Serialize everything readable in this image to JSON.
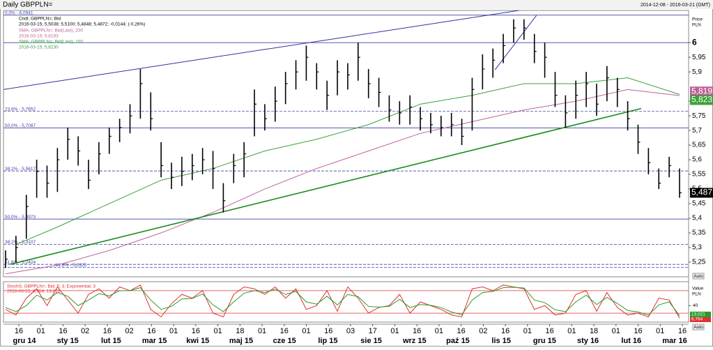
{
  "chart_data": [
    {
      "type": "ohlc",
      "title": "Daily GBPPLN=",
      "subtitle": "2014-12-08 - 2016-03-21 (GMT)",
      "y_label": "Price",
      "y_unit": "PLN",
      "info": [
        "Cndl; GBPPLN=; Bid",
        "2016-03-15; 5,5038; 5,5100; 5,4848; 5,4872; -0,0144; (-0,26%)"
      ],
      "color": "#000000",
      "last_label": "5,487",
      "high": [
        5.29,
        5.34,
        5.48,
        5.6,
        5.58,
        5.64,
        5.71,
        5.68,
        5.6,
        5.66,
        5.71,
        5.74,
        5.79,
        5.91,
        5.83,
        5.66,
        5.59,
        5.61,
        5.62,
        5.64,
        5.63,
        5.52,
        5.62,
        5.66,
        5.84,
        5.79,
        5.85,
        5.9,
        5.94,
        5.99,
        5.93,
        5.87,
        5.94,
        5.93,
        6.0,
        5.91,
        5.88,
        5.82,
        5.8,
        5.82,
        5.78,
        5.76,
        5.75,
        5.76,
        5.74,
        5.88,
        5.96,
        5.98,
        6.03,
        6.08,
        6.08,
        6.03,
        6.0,
        5.9,
        5.82,
        5.87,
        5.9,
        5.86,
        5.92,
        5.88,
        5.8,
        5.72,
        5.64,
        5.57,
        5.61,
        5.57
      ],
      "low": [
        5.23,
        5.25,
        5.33,
        5.47,
        5.47,
        5.49,
        5.6,
        5.58,
        5.5,
        5.55,
        5.62,
        5.66,
        5.69,
        5.74,
        5.7,
        5.54,
        5.5,
        5.51,
        5.53,
        5.55,
        5.5,
        5.42,
        5.52,
        5.54,
        5.68,
        5.7,
        5.73,
        5.79,
        5.84,
        5.87,
        5.84,
        5.77,
        5.82,
        5.84,
        5.87,
        5.81,
        5.78,
        5.73,
        5.72,
        5.72,
        5.7,
        5.69,
        5.68,
        5.68,
        5.65,
        5.7,
        5.84,
        5.88,
        5.93,
        6.0,
        6.01,
        5.93,
        5.88,
        5.78,
        5.71,
        5.74,
        5.78,
        5.75,
        5.8,
        5.78,
        5.7,
        5.62,
        5.55,
        5.5,
        5.54,
        5.47
      ],
      "close": [
        5.26,
        5.3,
        5.44,
        5.56,
        5.52,
        5.6,
        5.67,
        5.63,
        5.53,
        5.62,
        5.68,
        5.71,
        5.75,
        5.86,
        5.74,
        5.58,
        5.54,
        5.56,
        5.58,
        5.6,
        5.57,
        5.46,
        5.58,
        5.62,
        5.79,
        5.74,
        5.8,
        5.86,
        5.9,
        5.95,
        5.9,
        5.82,
        5.9,
        5.89,
        5.95,
        5.86,
        5.83,
        5.77,
        5.76,
        5.78,
        5.74,
        5.72,
        5.71,
        5.72,
        5.68,
        5.84,
        5.91,
        5.94,
        5.99,
        6.05,
        6.05,
        5.97,
        5.95,
        5.82,
        5.76,
        5.82,
        5.86,
        5.79,
        5.88,
        5.84,
        5.74,
        5.66,
        5.59,
        5.52,
        5.58,
        5.487
      ],
      "lines": [
        {
          "name": "SMA; GBPPLN=; Bid(Last); 200",
          "detail": "2016-03-15; 5,8193",
          "color": "#c0609a",
          "last_label": "5,819",
          "x": [
            0,
            5,
            10,
            15,
            20,
            25,
            30,
            35,
            40,
            45,
            50,
            55,
            60,
            65
          ],
          "values": [
            5.21,
            5.24,
            5.29,
            5.35,
            5.42,
            5.5,
            5.57,
            5.63,
            5.69,
            5.73,
            5.77,
            5.8,
            5.84,
            5.819
          ]
        },
        {
          "name": "SMA; GBPPLN=; Bid(Last); 100",
          "detail": "2016-03-15; 5,8230",
          "color": "#3aa03a",
          "last_label": "5,823",
          "x": [
            1,
            5,
            10,
            15,
            20,
            25,
            30,
            35,
            40,
            45,
            50,
            55,
            60,
            65
          ],
          "values": [
            5.31,
            5.37,
            5.45,
            5.53,
            5.57,
            5.63,
            5.67,
            5.72,
            5.79,
            5.82,
            5.86,
            5.86,
            5.88,
            5.823
          ]
        }
      ],
      "trendlines": [
        {
          "color": "#3030a0",
          "x": [
            -0.2,
            49.5
          ],
          "values": [
            5.84,
            6.11
          ]
        },
        {
          "color": "#1a8a1a",
          "x": [
            0.5,
            61.3
          ],
          "values": [
            5.243,
            5.775
          ]
        },
        {
          "color": "#3030a0",
          "x": [
            47.2,
            51.2
          ],
          "values": [
            5.907,
            6.093
          ]
        }
      ],
      "levels": [
        {
          "value": 6.0941,
          "label": "0,0% - 6,0941",
          "dash": false
        },
        {
          "value": 6,
          "dash": false
        },
        {
          "value": 5.7652,
          "label": "23,6% - 5,7652",
          "dash": true
        },
        {
          "value": 5.7087,
          "label": "50,0% - 5,7087",
          "dash": false
        },
        {
          "value": 5.5617,
          "label": "38,2% - 5,5617",
          "dash": true
        },
        {
          "value": 5.3973,
          "label": "50,0% - 5,3973",
          "dash": false
        },
        {
          "value": 5.3107,
          "label": "38,2% - 5,3107",
          "dash": true
        },
        {
          "value": 5.2424,
          "label": "61,8% - 5,2424",
          "dash": true
        },
        {
          "value": 5.2325,
          "label": "61,8% - 5,2325",
          "dash": true
        }
      ],
      "level_color": "#4040a0",
      "ylim": [
        5.2,
        6.11
      ],
      "yticks": [
        6,
        {
          "value": 5.95,
          "label": "5,95"
        },
        {
          "value": 5.9,
          "label": "5,9"
        },
        {
          "value": 5.8,
          "label": "5,8"
        },
        {
          "value": 5.75,
          "label": "5,75"
        },
        {
          "value": 5.7,
          "label": "5,7"
        },
        {
          "value": 5.65,
          "label": "5,65"
        },
        {
          "value": 5.6,
          "label": "5,6"
        },
        {
          "value": 5.55,
          "label": "5,55"
        },
        {
          "value": 5.5,
          "label": "5,5"
        },
        {
          "value": 5.45,
          "label": "5,45"
        },
        {
          "value": 5.4,
          "label": "5,4"
        },
        {
          "value": 5.35,
          "label": "5,35"
        },
        {
          "value": 5.3,
          "label": "5,3"
        },
        {
          "value": 5.25,
          "label": "5,25"
        }
      ],
      "auto_label": "Auto"
    },
    {
      "type": "stochastic",
      "title": "StochS; GBPPLN=; Bid; 5; 3; Exponential; 3",
      "subtitle": "2016-03-15; 6,764; 13,021",
      "y_label": "Value",
      "y_unit": "PLN",
      "series": [
        {
          "color": "#e03030",
          "last_label": "6,764",
          "values": [
            30,
            15,
            60,
            85,
            40,
            90,
            55,
            20,
            70,
            85,
            60,
            90,
            80,
            95,
            30,
            10,
            45,
            70,
            60,
            80,
            20,
            10,
            70,
            90,
            85,
            70,
            90,
            60,
            85,
            30,
            40,
            80,
            25,
            90,
            60,
            20,
            35,
            40,
            70,
            20,
            50,
            40,
            30,
            15,
            10,
            85,
            90,
            80,
            95,
            90,
            85,
            30,
            40,
            15,
            20,
            70,
            80,
            25,
            75,
            35,
            15,
            20,
            10,
            60,
            55,
            6.764
          ]
        },
        {
          "color": "#2a9a2a",
          "last_label": "13,021",
          "values": [
            35,
            24,
            40,
            68,
            55,
            75,
            65,
            40,
            55,
            72,
            66,
            80,
            80,
            88,
            55,
            30,
            38,
            58,
            59,
            71,
            42,
            24,
            50,
            73,
            80,
            75,
            84,
            70,
            78,
            50,
            44,
            65,
            42,
            70,
            64,
            38,
            36,
            38,
            57,
            35,
            43,
            41,
            35,
            23,
            16,
            55,
            75,
            78,
            88,
            89,
            87,
            55,
            48,
            29,
            24,
            50,
            68,
            43,
            62,
            46,
            27,
            23,
            15,
            42,
            50,
            13.021
          ]
        }
      ],
      "levels": [
        20,
        80
      ],
      "level_color": "#e03030",
      "ylim": [
        -4,
        104
      ],
      "yticks": [
        40
      ],
      "x_day_labels": [
        "16",
        "01",
        "16",
        "02",
        "16",
        "02",
        "16",
        "01",
        "16",
        "01",
        "18",
        "01",
        "16",
        "01",
        "16",
        "03",
        "17",
        "01",
        "16",
        "01",
        "16",
        "02",
        "16",
        "01",
        "16",
        "01",
        "18",
        "01",
        "16",
        "01",
        "16"
      ],
      "x_month_labels": [
        "gru 14",
        "sty 15",
        "lut 15",
        "mar 15",
        "kwi 15",
        "maj 15",
        "cze 15",
        "lip 15",
        "sie 15",
        "wrz 15",
        "paź 15",
        "lis 15",
        "gru 15",
        "sty 16",
        "lut 16",
        "mar 16"
      ],
      "auto_label": "Auto"
    }
  ]
}
